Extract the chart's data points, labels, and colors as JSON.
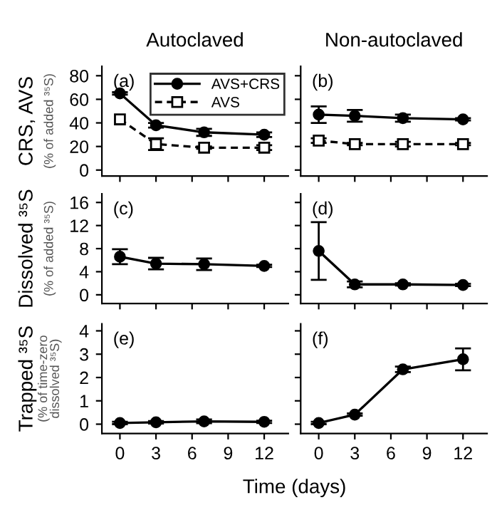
{
  "chart_data": [
    {
      "type": "line",
      "title": "Autoclaved",
      "ylabel": "CRS, AVS\n(% of added ³⁵S)",
      "annotations": [
        "(a)"
      ],
      "x": [
        0,
        3,
        7,
        12
      ],
      "xlim": [
        -1.5,
        14
      ],
      "xticks": [
        0,
        3,
        6,
        9,
        12
      ],
      "ylim": [
        -5,
        88
      ],
      "yticks": [
        0,
        20,
        40,
        60,
        80
      ],
      "tick_labels": "y",
      "legend": "top",
      "grid": false,
      "series": [
        {
          "name": "AVS+CRS",
          "color": "#000000",
          "marker": "circle",
          "line_style": "solid",
          "values": [
            65,
            38,
            32,
            30
          ],
          "errors": [
            1,
            2,
            3,
            2
          ]
        },
        {
          "name": "AVS",
          "color": "#000000",
          "marker": "square",
          "line_style": "dashed",
          "values": [
            43,
            22,
            19,
            19
          ],
          "errors": [
            null,
            5,
            1,
            2
          ]
        }
      ]
    },
    {
      "type": "line",
      "title": "Non-autoclaved",
      "annotations": [
        "(b)"
      ],
      "x": [
        0,
        3,
        7,
        12
      ],
      "xlim": [
        -1.5,
        14
      ],
      "xticks": [
        0,
        3,
        6,
        9,
        12
      ],
      "ylim": [
        -5,
        88
      ],
      "yticks": [
        0,
        20,
        40,
        60,
        80
      ],
      "tick_labels": false,
      "grid": false,
      "series": [
        {
          "color": "#000000",
          "marker": "circle",
          "line_style": "solid",
          "values": [
            47,
            46,
            44,
            43
          ],
          "errors": [
            7,
            5,
            3,
            1
          ]
        },
        {
          "color": "#000000",
          "marker": "square",
          "line_style": "dashed",
          "values": [
            25,
            22,
            22,
            22
          ],
          "errors": [
            2,
            1,
            2,
            1
          ]
        }
      ]
    },
    {
      "type": "line",
      "ylabel": "Dissolved ³⁵S\n(% of added ³⁵S)",
      "annotations": [
        "(c)"
      ],
      "x": [
        0,
        3,
        7,
        12
      ],
      "xlim": [
        -1.5,
        14
      ],
      "xticks": [
        0,
        3,
        6,
        9,
        12
      ],
      "ylim": [
        -1.5,
        17.5
      ],
      "yticks": [
        0,
        4,
        8,
        12,
        16
      ],
      "tick_labels": "y",
      "grid": false,
      "series": [
        {
          "color": "#000000",
          "marker": "circle",
          "line_style": "solid",
          "values": [
            6.6,
            5.4,
            5.3,
            5.0
          ],
          "errors": [
            1.3,
            1.0,
            1.0,
            0.2
          ]
        }
      ]
    },
    {
      "type": "line",
      "annotations": [
        "(d)"
      ],
      "x": [
        0,
        3,
        7,
        12
      ],
      "xlim": [
        -1.5,
        14
      ],
      "xticks": [
        0,
        3,
        6,
        9,
        12
      ],
      "ylim": [
        -1.5,
        17.5
      ],
      "yticks": [
        0,
        4,
        8,
        12,
        16
      ],
      "tick_labels": false,
      "grid": false,
      "series": [
        {
          "color": "#000000",
          "marker": "circle",
          "line_style": "solid",
          "values": [
            7.6,
            1.8,
            1.8,
            1.7
          ],
          "errors": [
            5,
            0.5,
            0.2,
            0.2
          ]
        }
      ]
    },
    {
      "type": "line",
      "ylabel": "Trapped ³⁵S\n(% of time-zero\ndissolved ³⁵S)",
      "xlabel": "Time (days)",
      "annotations": [
        "(e)"
      ],
      "x": [
        0,
        3,
        7,
        12
      ],
      "xlim": [
        -1.5,
        14
      ],
      "xticks": [
        0,
        3,
        6,
        9,
        12
      ],
      "ylim": [
        -0.4,
        4.3
      ],
      "yticks": [
        0,
        1,
        2,
        3,
        4
      ],
      "grid": false,
      "series": [
        {
          "color": "#000000",
          "marker": "circle",
          "line_style": "solid",
          "values": [
            0.05,
            0.08,
            0.12,
            0.1
          ],
          "errors": [
            0.05,
            0.05,
            0.08,
            0.05
          ]
        }
      ]
    },
    {
      "type": "line",
      "annotations": [
        "(f)"
      ],
      "x": [
        0,
        3,
        7,
        12
      ],
      "xlim": [
        -1.5,
        14
      ],
      "xticks": [
        0,
        3,
        6,
        9,
        12
      ],
      "ylim": [
        -0.4,
        4.3
      ],
      "yticks": [
        0,
        1,
        2,
        3,
        4
      ],
      "tick_labels": "x",
      "grid": false,
      "series": [
        {
          "color": "#000000",
          "marker": "circle",
          "line_style": "solid",
          "values": [
            0.05,
            0.41,
            2.35,
            2.78
          ],
          "errors": [
            0.05,
            0.05,
            0.12,
            0.47
          ]
        }
      ]
    }
  ]
}
